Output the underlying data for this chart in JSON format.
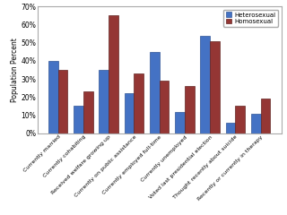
{
  "categories": [
    "Currently married",
    "Currently cohabiting",
    "Received welfare growing up",
    "Currently on public assistance",
    "Currently employed full-time",
    "Currently unemployed",
    "Voted last presidential election",
    "Thought recently about suicide",
    "Recently or currently in therapy"
  ],
  "heterosexual": [
    40,
    15,
    35,
    22,
    45,
    12,
    54,
    6,
    11
  ],
  "homosexual": [
    35,
    23,
    65,
    33,
    29,
    26,
    51,
    15,
    19
  ],
  "het_color": "#4472C4",
  "homo_color": "#943634",
  "ylabel": "Population Percent",
  "ylim": [
    0,
    70
  ],
  "yticks": [
    0,
    10,
    20,
    30,
    40,
    50,
    60,
    70
  ],
  "ytick_labels": [
    "0%",
    "10%",
    "20%",
    "30%",
    "40%",
    "50%",
    "60%",
    "70%"
  ],
  "legend_labels": [
    "Heterosexual",
    "Homosexual"
  ],
  "bar_width": 0.38,
  "het_edge": "#2F5496",
  "homo_edge": "#632523"
}
